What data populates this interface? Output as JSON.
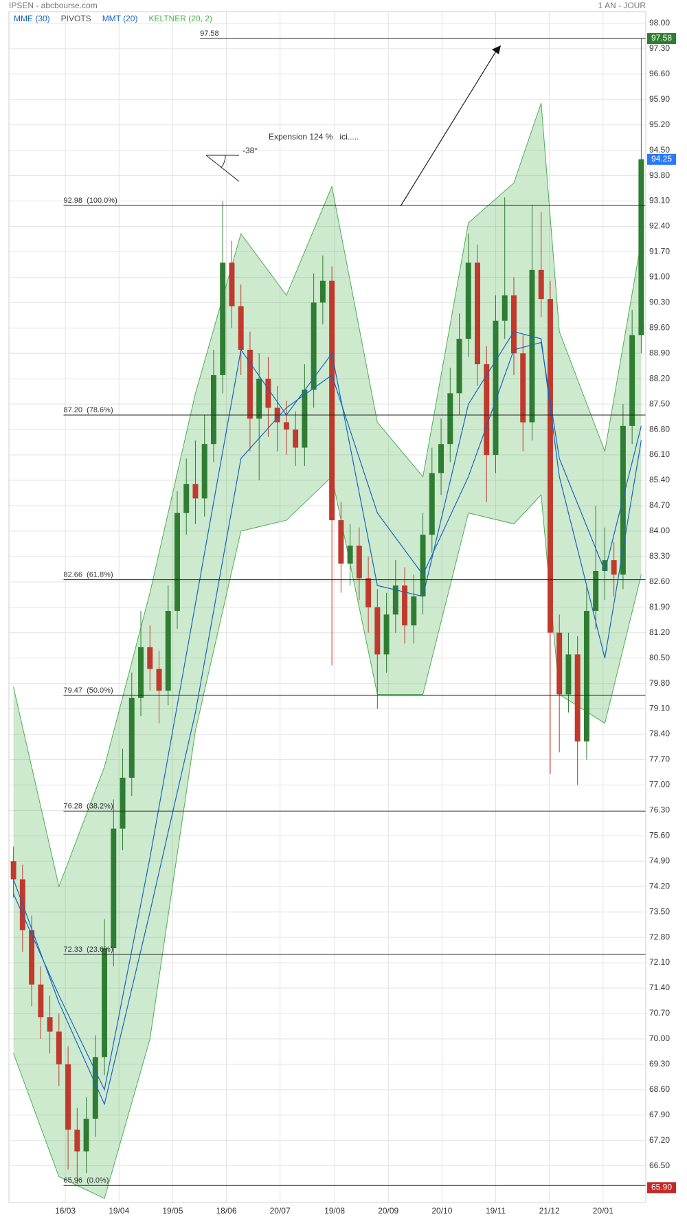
{
  "chart_data": {
    "type": "candlestick",
    "title": "IPSEN - abcbourse.com",
    "subtitle": "1 AN - JOUR",
    "up_color": "#2e7d32",
    "down_color": "#c0392b",
    "open": [
      74.9,
      74.4,
      73.0,
      71.5,
      70.6,
      70.2,
      69.3,
      67.5,
      66.9,
      67.8,
      69.5,
      72.5,
      75.8,
      77.2,
      79.4,
      80.8,
      80.2,
      79.6,
      81.8,
      84.5,
      85.3,
      84.9,
      86.4,
      88.3,
      91.4,
      90.2,
      89.0,
      87.1,
      88.2,
      87.4,
      87.0,
      86.8,
      86.3,
      87.9,
      90.3,
      90.9,
      84.3,
      83.1,
      83.6,
      82.7,
      81.9,
      80.6,
      81.7,
      82.5,
      81.4,
      82.2,
      83.9,
      85.6,
      86.4,
      87.8,
      89.3,
      91.4,
      88.6,
      86.1,
      89.8,
      90.5,
      88.9,
      87.0,
      91.2,
      90.4,
      81.2,
      79.5,
      80.6,
      78.2,
      81.8,
      82.9,
      83.2,
      82.8,
      86.9,
      89.4
    ],
    "high": [
      75.3,
      74.8,
      73.4,
      72.0,
      71.2,
      70.7,
      69.8,
      68.1,
      68.4,
      70.1,
      73.3,
      76.6,
      78.0,
      80.1,
      81.8,
      81.4,
      80.7,
      82.5,
      85.1,
      86.0,
      86.5,
      87.2,
      89.0,
      93.1,
      92.0,
      90.8,
      89.5,
      88.9,
      88.8,
      88.0,
      87.6,
      87.3,
      88.6,
      91.1,
      91.6,
      91.3,
      84.8,
      84.2,
      84.1,
      83.3,
      82.4,
      82.3,
      83.2,
      83.0,
      82.8,
      84.5,
      86.3,
      87.1,
      88.5,
      90.0,
      92.2,
      91.9,
      89.1,
      90.5,
      93.2,
      91.0,
      89.4,
      93.0,
      92.8,
      90.9,
      81.7,
      81.2,
      81.1,
      82.5,
      84.7,
      84.1,
      83.7,
      87.5,
      90.1,
      97.58
    ],
    "low": [
      73.9,
      72.4,
      70.9,
      70.0,
      69.6,
      68.7,
      66.4,
      66.0,
      66.3,
      67.3,
      69.0,
      72.0,
      75.2,
      76.7,
      78.9,
      79.6,
      78.7,
      79.2,
      81.3,
      83.9,
      84.2,
      84.4,
      85.9,
      87.8,
      89.6,
      88.3,
      86.2,
      85.4,
      86.6,
      86.2,
      86.1,
      85.8,
      85.8,
      87.4,
      89.7,
      80.3,
      82.3,
      82.5,
      82.1,
      81.2,
      79.1,
      80.1,
      81.2,
      80.9,
      80.9,
      81.7,
      83.4,
      85.0,
      85.9,
      87.2,
      88.8,
      88.0,
      84.8,
      85.6,
      89.3,
      88.3,
      86.2,
      86.5,
      89.9,
      77.3,
      77.9,
      79.0,
      77.0,
      77.7,
      81.3,
      82.1,
      82.2,
      82.4,
      86.4,
      88.9
    ],
    "close": [
      74.4,
      73.0,
      71.5,
      70.6,
      70.2,
      69.3,
      67.5,
      66.9,
      67.8,
      69.5,
      72.5,
      75.8,
      77.2,
      79.4,
      80.8,
      80.2,
      79.6,
      81.8,
      84.5,
      85.3,
      84.9,
      86.4,
      88.3,
      91.4,
      90.2,
      89.0,
      87.1,
      88.2,
      87.4,
      87.0,
      86.8,
      86.3,
      87.9,
      90.3,
      90.9,
      84.3,
      83.1,
      83.6,
      82.7,
      81.9,
      80.6,
      81.7,
      82.5,
      81.4,
      82.2,
      83.9,
      85.6,
      86.4,
      87.8,
      89.3,
      91.4,
      88.6,
      86.1,
      89.8,
      90.5,
      88.9,
      87.0,
      91.2,
      90.4,
      81.2,
      79.5,
      80.6,
      78.2,
      81.8,
      82.9,
      83.2,
      82.8,
      86.9,
      89.4,
      94.25
    ],
    "series": [
      {
        "name": "MME (30)",
        "color": "#1565c0",
        "x": [
          0,
          5,
          10,
          15,
          20,
          25,
          30,
          35,
          40,
          45,
          50,
          55,
          58,
          60,
          65,
          69
        ],
        "values": [
          74.4,
          71.0,
          68.2,
          73.5,
          79.0,
          86.0,
          87.4,
          88.3,
          84.5,
          82.8,
          85.5,
          89.0,
          89.2,
          86.0,
          82.9,
          86.9
        ]
      },
      {
        "name": "PIVOTS",
        "color": "#555555"
      },
      {
        "name": "MMT (20)",
        "color": "#1565c0",
        "x": [
          0,
          5,
          10,
          15,
          20,
          25,
          30,
          35,
          40,
          45,
          50,
          55,
          58,
          60,
          65,
          69
        ],
        "values": [
          74.0,
          71.2,
          68.6,
          75.0,
          82.0,
          89.0,
          87.2,
          88.9,
          82.5,
          82.2,
          87.5,
          89.5,
          89.3,
          85.5,
          80.5,
          86.5
        ]
      },
      {
        "name": "KELTNER (20, 2)",
        "color": "#4caf50",
        "x": [
          0,
          5,
          10,
          15,
          20,
          25,
          30,
          35,
          40,
          45,
          50,
          55,
          58,
          60,
          65,
          69
        ],
        "upper": [
          79.7,
          74.2,
          77.5,
          82.3,
          87.8,
          92.2,
          90.5,
          93.5,
          87.0,
          85.5,
          92.5,
          93.6,
          95.8,
          89.5,
          86.2,
          92.0
        ],
        "lower": [
          69.6,
          66.2,
          65.6,
          70.0,
          78.5,
          84.0,
          84.3,
          85.5,
          79.5,
          79.5,
          84.5,
          84.2,
          85.0,
          79.5,
          78.7,
          82.8
        ]
      }
    ],
    "xlim": [
      -0.5,
      69.5
    ],
    "xticks": [
      {
        "value": 5.7,
        "label": "16/03"
      },
      {
        "value": 11.6,
        "label": "19/04"
      },
      {
        "value": 17.5,
        "label": "19/05"
      },
      {
        "value": 23.4,
        "label": "18/06"
      },
      {
        "value": 29.3,
        "label": "20/07"
      },
      {
        "value": 35.3,
        "label": "19/08"
      },
      {
        "value": 41.2,
        "label": "20/09"
      },
      {
        "value": 47.1,
        "label": "20/10"
      },
      {
        "value": 53.0,
        "label": "19/11"
      },
      {
        "value": 58.9,
        "label": "21/12"
      },
      {
        "value": 64.8,
        "label": "20/01"
      }
    ],
    "ylim": [
      65.49,
      98.32
    ],
    "yticks": [
      {
        "value": 66.5,
        "label": "66.50"
      },
      {
        "value": 67.2,
        "label": "67.20"
      },
      {
        "value": 67.9,
        "label": "67.90"
      },
      {
        "value": 68.6,
        "label": "68.60"
      },
      {
        "value": 69.3,
        "label": "69.30"
      },
      {
        "value": 70.0,
        "label": "70.00"
      },
      {
        "value": 70.7,
        "label": "70.70"
      },
      {
        "value": 71.4,
        "label": "71.40"
      },
      {
        "value": 72.1,
        "label": "72.10"
      },
      {
        "value": 72.8,
        "label": "72.80"
      },
      {
        "value": 73.5,
        "label": "73.50"
      },
      {
        "value": 74.2,
        "label": "74.20"
      },
      {
        "value": 74.9,
        "label": "74.90"
      },
      {
        "value": 75.6,
        "label": "75.60"
      },
      {
        "value": 76.3,
        "label": "76.30"
      },
      {
        "value": 77.0,
        "label": "77.00"
      },
      {
        "value": 77.7,
        "label": "77.70"
      },
      {
        "value": 78.4,
        "label": "78.40"
      },
      {
        "value": 79.1,
        "label": "79.10"
      },
      {
        "value": 79.8,
        "label": "79.80"
      },
      {
        "value": 80.5,
        "label": "80.50"
      },
      {
        "value": 81.2,
        "label": "81.20"
      },
      {
        "value": 81.9,
        "label": "81.90"
      },
      {
        "value": 82.6,
        "label": "82.60"
      },
      {
        "value": 83.3,
        "label": "83.30"
      },
      {
        "value": 84.0,
        "label": "84.00"
      },
      {
        "value": 84.7,
        "label": "84.70"
      },
      {
        "value": 85.4,
        "label": "85.40"
      },
      {
        "value": 86.1,
        "label": "86.10"
      },
      {
        "value": 86.8,
        "label": "86.80"
      },
      {
        "value": 87.5,
        "label": "87.50"
      },
      {
        "value": 88.2,
        "label": "88.20"
      },
      {
        "value": 88.9,
        "label": "88.90"
      },
      {
        "value": 89.6,
        "label": "89.60"
      },
      {
        "value": 90.3,
        "label": "90.30"
      },
      {
        "value": 91.0,
        "label": "91.00"
      },
      {
        "value": 91.7,
        "label": "91.70"
      },
      {
        "value": 92.4,
        "label": "92.40"
      },
      {
        "value": 93.1,
        "label": "93.10"
      },
      {
        "value": 93.8,
        "label": "93.80"
      },
      {
        "value": 94.5,
        "label": "94.50"
      },
      {
        "value": 95.2,
        "label": "95.20"
      },
      {
        "value": 95.9,
        "label": "95.90"
      },
      {
        "value": 96.6,
        "label": "96.60"
      },
      {
        "value": 97.3,
        "label": "97.30"
      },
      {
        "value": 98.0,
        "label": "98.00"
      }
    ],
    "grid": true,
    "levels": [
      {
        "value": 97.58,
        "label": "97.58"
      },
      {
        "value": 92.98,
        "label": "92.98  (100.0%)"
      },
      {
        "value": 87.2,
        "label": "87.20  (78.6%)"
      },
      {
        "value": 82.66,
        "label": "82.66  (61.8%)"
      },
      {
        "value": 79.47,
        "label": "79.47  (50.0%)"
      },
      {
        "value": 76.28,
        "label": "76.28  (38.2%)"
      },
      {
        "value": 72.33,
        "label": "72.33  (23.6%)"
      },
      {
        "value": 65.96,
        "label": "65.96  (0.0%)"
      }
    ],
    "badges": [
      {
        "value": 97.58,
        "label": "97.58",
        "color": "#2e7d32"
      },
      {
        "value": 94.25,
        "label": "94.25",
        "color": "#2979ff"
      },
      {
        "value": 65.9,
        "label": "65.90",
        "color": "#c62828"
      }
    ],
    "annotations": [
      "Expension 124 %   ici.....",
      "-38°"
    ]
  }
}
